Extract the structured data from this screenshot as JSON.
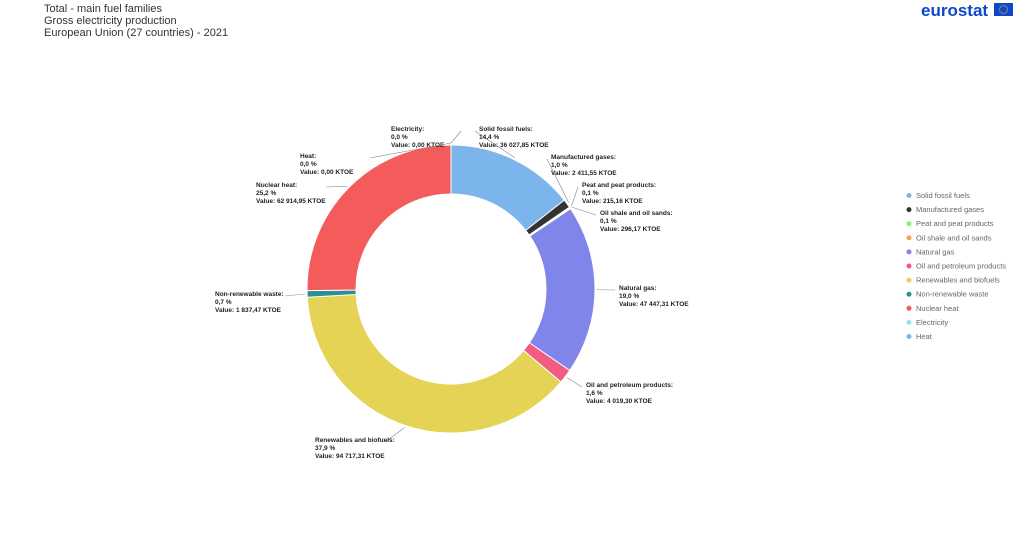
{
  "chart_data": {
    "type": "pie",
    "title_lines": [
      "Total - main fuel families",
      "Gross electricity production",
      "European Union (27 countries) - 2021"
    ],
    "brand": "eurostat",
    "categories": [
      "Solid fossil fuels",
      "Manufactured gases",
      "Peat and peat products",
      "Oil shale and oil sands",
      "Natural gas",
      "Oil and petroleum products",
      "Renewables and biofuels",
      "Non-renewable waste",
      "Nuclear heat",
      "Electricity",
      "Heat"
    ],
    "label_names": [
      "Solid fossil fuels:",
      "Manufactured gases:",
      "Peat and peat products:",
      "Oil shale and oil sands:",
      "Natural gas:",
      "Oil and petroleum products:",
      "Renewables and biofuels:",
      "Non-renewable waste:",
      "Nuclear heat:",
      "Electricity:",
      "Heat:"
    ],
    "values": [
      36027.85,
      2411.55,
      215.16,
      296.17,
      47447.31,
      4019.3,
      94717.31,
      1837.47,
      62914.95,
      0.0,
      0.0
    ],
    "value_labels": [
      "Value: 36 027,85 KTOE",
      "Value: 2 411,55 KTOE",
      "Value: 215,16 KTOE",
      "Value: 296,17 KTOE",
      "Value: 47 447,31 KTOE",
      "Value: 4 019,30 KTOE",
      "Value: 94 717,31 KTOE",
      "Value: 1 837,47 KTOE",
      "Value: 62 914,95 KTOE",
      "Value: 0,00 KTOE",
      "Value: 0,00 KTOE"
    ],
    "percents": [
      14.4,
      1.0,
      0.1,
      0.1,
      19.0,
      1.6,
      37.9,
      0.7,
      25.2,
      0.0,
      0.0
    ],
    "percent_labels": [
      "14,4 %",
      "1,0 %",
      "0,1 %",
      "0,1 %",
      "19,0 %",
      "1,6 %",
      "37,9 %",
      "0,7 %",
      "25,2 %",
      "0,0 %",
      "0,0 %"
    ],
    "colors": [
      "#7cb5ec",
      "#333333",
      "#90ed7d",
      "#f7a35c",
      "#8085e9",
      "#f15c80",
      "#e4d354",
      "#2b908f",
      "#f45b5b",
      "#91e8e1",
      "#7cb5ec"
    ],
    "donut": true
  }
}
